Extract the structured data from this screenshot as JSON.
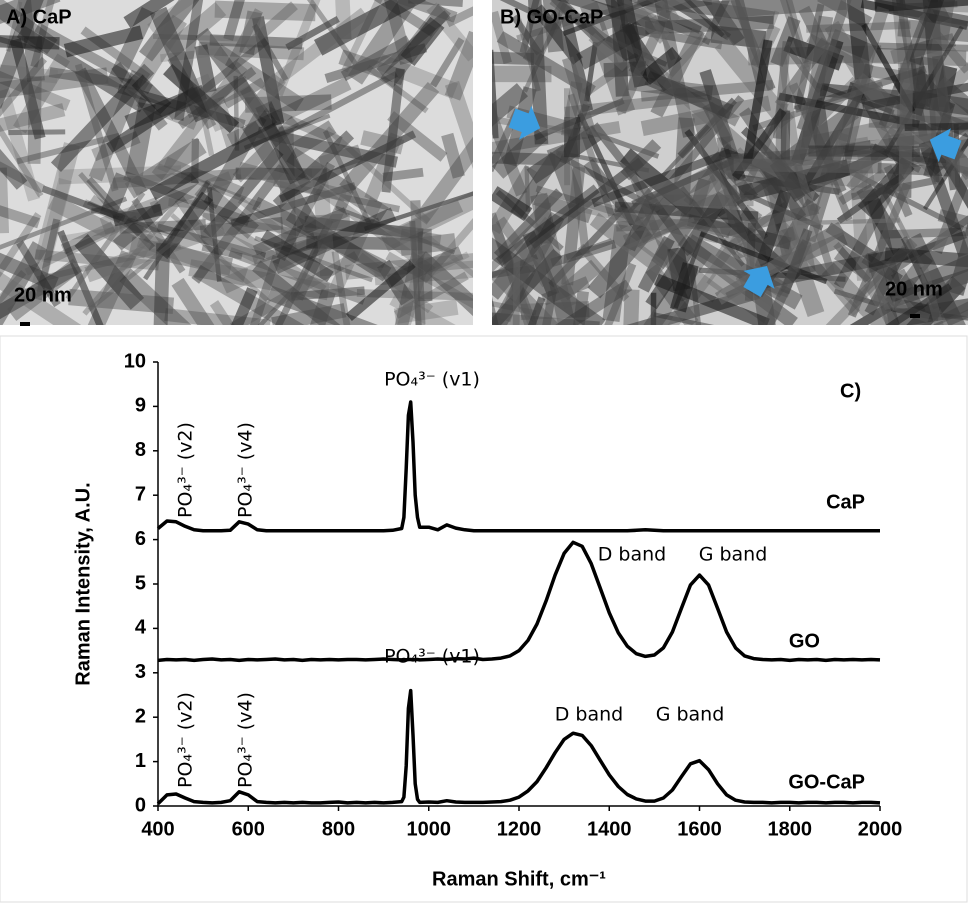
{
  "panels": [
    {
      "label": "A) CaP",
      "scale_bar": "20 nm"
    },
    {
      "label": "B) GO-CaP",
      "scale_bar": "20 nm"
    }
  ],
  "chart_data": {
    "type": "line",
    "panel_label": "C)",
    "xlabel": "Raman Shift, cm⁻¹",
    "ylabel": "Raman Intensity, A.U.",
    "xlim": [
      400,
      2000
    ],
    "xticks": [
      400,
      600,
      800,
      1000,
      1200,
      1400,
      1600,
      1800,
      2000
    ],
    "ylim": [
      0,
      10
    ],
    "yticks": [
      0,
      1,
      2,
      3,
      4,
      5,
      6,
      7,
      8,
      9,
      10
    ],
    "x": [
      400,
      420,
      440,
      460,
      480,
      500,
      520,
      540,
      560,
      580,
      600,
      620,
      640,
      660,
      680,
      700,
      720,
      740,
      760,
      780,
      800,
      820,
      840,
      860,
      880,
      900,
      920,
      940,
      945,
      950,
      955,
      960,
      965,
      970,
      975,
      980,
      1000,
      1020,
      1040,
      1060,
      1080,
      1100,
      1120,
      1140,
      1160,
      1180,
      1200,
      1220,
      1240,
      1260,
      1280,
      1300,
      1320,
      1340,
      1360,
      1380,
      1400,
      1420,
      1440,
      1460,
      1480,
      1500,
      1520,
      1540,
      1560,
      1580,
      1600,
      1620,
      1640,
      1660,
      1680,
      1700,
      1720,
      1740,
      1760,
      1780,
      1800,
      1820,
      1840,
      1860,
      1880,
      1900,
      1920,
      1940,
      1960,
      1980,
      2000
    ],
    "series": [
      {
        "name": "CaP",
        "color": "#000000",
        "values": [
          6.25,
          6.42,
          6.4,
          6.3,
          6.22,
          6.2,
          6.2,
          6.2,
          6.21,
          6.4,
          6.35,
          6.22,
          6.2,
          6.2,
          6.2,
          6.2,
          6.2,
          6.2,
          6.2,
          6.2,
          6.2,
          6.2,
          6.2,
          6.2,
          6.2,
          6.2,
          6.21,
          6.25,
          6.5,
          7.6,
          8.8,
          9.1,
          8.2,
          7.0,
          6.5,
          6.28,
          6.28,
          6.22,
          6.33,
          6.26,
          6.22,
          6.2,
          6.2,
          6.2,
          6.2,
          6.2,
          6.2,
          6.2,
          6.2,
          6.2,
          6.2,
          6.2,
          6.2,
          6.2,
          6.2,
          6.2,
          6.2,
          6.2,
          6.2,
          6.21,
          6.22,
          6.21,
          6.2,
          6.2,
          6.2,
          6.2,
          6.2,
          6.2,
          6.2,
          6.2,
          6.2,
          6.2,
          6.2,
          6.2,
          6.2,
          6.2,
          6.2,
          6.2,
          6.2,
          6.2,
          6.2,
          6.2,
          6.2,
          6.2,
          6.2,
          6.2,
          6.2
        ]
      },
      {
        "name": "GO",
        "color": "#000000",
        "values": [
          3.28,
          3.3,
          3.29,
          3.3,
          3.28,
          3.3,
          3.31,
          3.29,
          3.3,
          3.28,
          3.3,
          3.29,
          3.3,
          3.31,
          3.29,
          3.3,
          3.28,
          3.3,
          3.29,
          3.3,
          3.29,
          3.3,
          3.3,
          3.29,
          3.3,
          3.31,
          3.3,
          3.29,
          3.3,
          3.29,
          3.3,
          3.3,
          3.29,
          3.3,
          3.3,
          3.29,
          3.3,
          3.31,
          3.3,
          3.32,
          3.31,
          3.33,
          3.3,
          3.31,
          3.33,
          3.38,
          3.5,
          3.73,
          4.1,
          4.62,
          5.2,
          5.69,
          5.94,
          5.85,
          5.46,
          4.91,
          4.35,
          3.9,
          3.6,
          3.43,
          3.37,
          3.4,
          3.56,
          3.92,
          4.45,
          4.98,
          5.2,
          4.98,
          4.45,
          3.92,
          3.56,
          3.38,
          3.32,
          3.3,
          3.29,
          3.3,
          3.28,
          3.3,
          3.29,
          3.3,
          3.28,
          3.3,
          3.29,
          3.3,
          3.29,
          3.3,
          3.29
        ]
      },
      {
        "name": "GO-CaP",
        "color": "#000000",
        "values": [
          0.05,
          0.25,
          0.27,
          0.18,
          0.1,
          0.08,
          0.07,
          0.08,
          0.12,
          0.32,
          0.25,
          0.1,
          0.08,
          0.07,
          0.08,
          0.07,
          0.08,
          0.07,
          0.07,
          0.08,
          0.09,
          0.07,
          0.08,
          0.07,
          0.08,
          0.07,
          0.08,
          0.1,
          0.2,
          0.9,
          2.2,
          2.6,
          1.6,
          0.5,
          0.15,
          0.08,
          0.09,
          0.08,
          0.12,
          0.09,
          0.08,
          0.08,
          0.08,
          0.09,
          0.1,
          0.13,
          0.2,
          0.34,
          0.55,
          0.86,
          1.2,
          1.5,
          1.64,
          1.59,
          1.36,
          1.03,
          0.7,
          0.44,
          0.26,
          0.16,
          0.11,
          0.11,
          0.18,
          0.36,
          0.66,
          0.95,
          1.02,
          0.82,
          0.5,
          0.25,
          0.13,
          0.09,
          0.08,
          0.08,
          0.07,
          0.08,
          0.08,
          0.07,
          0.08,
          0.08,
          0.07,
          0.08,
          0.08,
          0.07,
          0.08,
          0.08,
          0.07
        ]
      }
    ],
    "annotations": [
      "PO₄³⁻ (v2)",
      "PO₄³⁻ (v4)",
      "PO₄³⁻ (v1)",
      "D band",
      "G band",
      "PO₄³⁻ (v2)",
      "PO₄³⁻ (v4)",
      "PO₄³⁻ (v1)",
      "D band",
      "G band"
    ]
  }
}
